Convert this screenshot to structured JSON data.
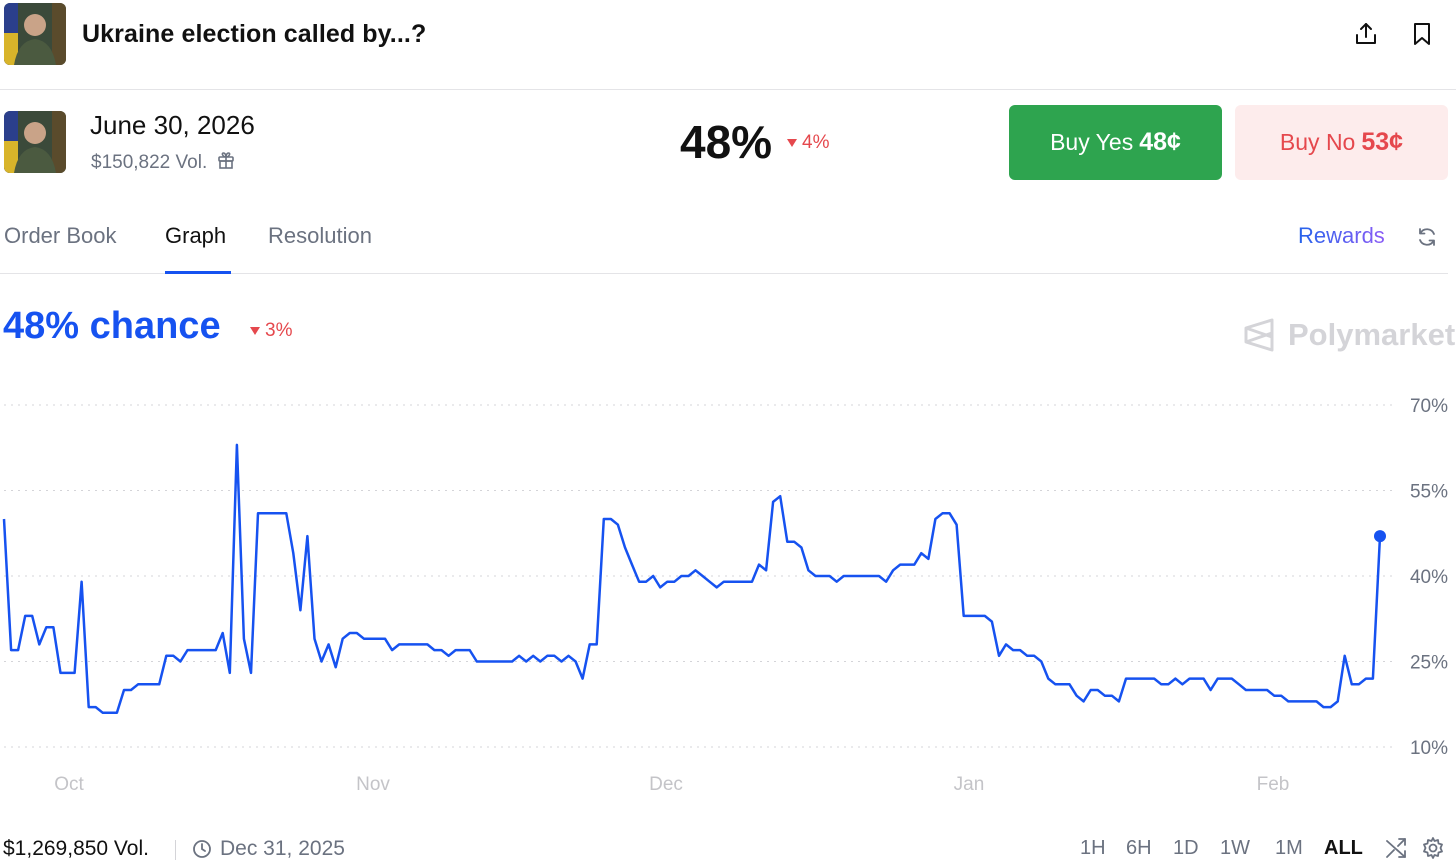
{
  "header": {
    "title": "Ukraine election called by...?",
    "share_icon": "share-upload-icon",
    "bookmark_icon": "bookmark-icon"
  },
  "outcome": {
    "title": "June 30, 2026",
    "volume": "$150,822 Vol.",
    "gift_icon": "gift-icon",
    "percent": "48%",
    "change": "4%",
    "change_direction": "down",
    "buy_yes_label": "Buy Yes",
    "buy_yes_price": "48¢",
    "buy_no_label": "Buy No",
    "buy_no_price": "53¢"
  },
  "tabs": [
    {
      "label": "Order Book",
      "active": false
    },
    {
      "label": "Graph",
      "active": true
    },
    {
      "label": "Resolution",
      "active": false
    }
  ],
  "rewards_label": "Rewards",
  "chance": {
    "label": "48% chance",
    "change": "3%",
    "change_direction": "down",
    "brand": "Polymarket"
  },
  "colors": {
    "accent_blue": "#1652f0",
    "yes_green": "#2ea44f",
    "no_red": "#e5484d",
    "no_bg": "#fdecec"
  },
  "chart_data": {
    "type": "line",
    "y_ticks": [
      "70%",
      "55%",
      "40%",
      "25%",
      "10%"
    ],
    "x_ticks": [
      "Oct",
      "Nov",
      "Dec",
      "Jan",
      "Feb"
    ],
    "ylim": [
      10,
      70
    ],
    "grid": true,
    "series": [
      {
        "values": [
          50,
          27,
          27,
          33,
          33,
          28,
          31,
          31,
          23,
          23,
          23,
          39,
          17,
          17,
          16,
          16,
          16,
          20,
          20,
          21,
          21,
          21,
          21,
          26,
          26,
          25,
          27,
          27,
          27,
          27,
          27,
          30,
          23,
          63,
          29,
          23,
          51,
          51,
          51,
          51,
          51,
          44,
          34,
          47,
          29,
          25,
          28,
          24,
          29,
          30,
          30,
          29,
          29,
          29,
          29,
          27,
          28,
          28,
          28,
          28,
          28,
          27,
          27,
          26,
          27,
          27,
          27,
          25,
          25,
          25,
          25,
          25,
          25,
          26,
          25,
          26,
          25,
          26,
          26,
          25,
          26,
          25,
          22,
          28,
          28,
          50,
          50,
          49,
          45,
          42,
          39,
          39,
          40,
          38,
          39,
          39,
          40,
          40,
          41,
          40,
          39,
          38,
          39,
          39,
          39,
          39,
          39,
          42,
          41,
          53,
          54,
          46,
          46,
          45,
          41,
          40,
          40,
          40,
          39,
          40,
          40,
          40,
          40,
          40,
          40,
          39,
          41,
          42,
          42,
          42,
          44,
          43,
          50,
          51,
          51,
          49,
          33,
          33,
          33,
          33,
          32,
          26,
          28,
          27,
          27,
          26,
          26,
          25,
          22,
          21,
          21,
          21,
          19,
          18,
          20,
          20,
          19,
          19,
          18,
          22,
          22,
          22,
          22,
          22,
          21,
          21,
          22,
          21,
          22,
          22,
          22,
          20,
          22,
          22,
          22,
          21,
          20,
          20,
          20,
          20,
          19,
          19,
          18,
          18,
          18,
          18,
          18,
          17,
          17,
          18,
          26,
          21,
          21,
          22,
          22,
          47
        ]
      }
    ],
    "last_point_marker": true
  },
  "footer": {
    "volume": "$1,269,850 Vol.",
    "date": "Dec 31, 2025",
    "clock_icon": "clock-icon",
    "ranges": [
      {
        "label": "1H",
        "active": false
      },
      {
        "label": "6H",
        "active": false
      },
      {
        "label": "1D",
        "active": false
      },
      {
        "label": "1W",
        "active": false
      },
      {
        "label": "1M",
        "active": false
      },
      {
        "label": "ALL",
        "active": true
      }
    ],
    "shuffle_icon": "shuffle-icon",
    "settings_icon": "settings-gear-icon"
  }
}
